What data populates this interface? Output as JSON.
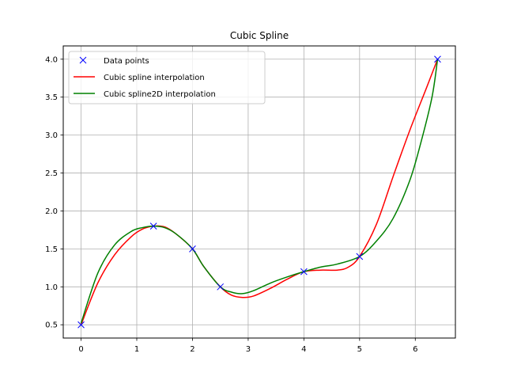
{
  "chart_data": {
    "type": "line",
    "title": "Cubic Spline",
    "xlabel": "",
    "ylabel": "",
    "xlim": [
      -0.32,
      6.72
    ],
    "ylim": [
      0.325,
      4.175
    ],
    "xticks": [
      0,
      1,
      2,
      3,
      4,
      5,
      6
    ],
    "xtick_labels": [
      "0",
      "1",
      "2",
      "3",
      "4",
      "5",
      "6"
    ],
    "yticks": [
      0.5,
      1.0,
      1.5,
      2.0,
      2.5,
      3.0,
      3.5,
      4.0
    ],
    "ytick_labels": [
      "0.5",
      "1.0",
      "1.5",
      "2.0",
      "2.5",
      "3.0",
      "3.5",
      "4.0"
    ],
    "grid": true,
    "legend_position": "upper-left",
    "series": [
      {
        "name": "Data points",
        "style": "markers",
        "marker": "x",
        "color": "#0000ff",
        "x": [
          0,
          1.3,
          2.0,
          2.5,
          4.0,
          5.0,
          6.4
        ],
        "y": [
          0.5,
          1.8,
          1.5,
          1.0,
          1.2,
          1.4,
          4.0
        ]
      },
      {
        "name": "Cubic spline interpolation",
        "style": "line",
        "color": "#ff0000",
        "x": [
          0,
          0.3,
          0.6,
          0.9,
          1.1,
          1.3,
          1.5,
          1.7,
          2.0,
          2.2,
          2.5,
          2.7,
          2.9,
          3.1,
          3.4,
          3.7,
          4.0,
          4.3,
          4.6,
          4.8,
          5.0,
          5.3,
          5.6,
          5.9,
          6.2,
          6.4
        ],
        "y": [
          0.5,
          1.05,
          1.42,
          1.66,
          1.76,
          1.8,
          1.79,
          1.7,
          1.5,
          1.27,
          1.0,
          0.89,
          0.86,
          0.88,
          0.98,
          1.1,
          1.2,
          1.22,
          1.22,
          1.26,
          1.4,
          1.82,
          2.45,
          3.06,
          3.62,
          4.0
        ]
      },
      {
        "name": "Cubic spline2D interpolation",
        "style": "line",
        "color": "#008000",
        "x": [
          0,
          0.3,
          0.6,
          0.9,
          1.1,
          1.3,
          1.5,
          1.7,
          2.0,
          2.2,
          2.5,
          2.7,
          2.9,
          3.1,
          3.4,
          3.7,
          4.0,
          4.3,
          4.6,
          5.0,
          5.3,
          5.6,
          5.9,
          6.1,
          6.3,
          6.4
        ],
        "y": [
          0.52,
          1.18,
          1.55,
          1.73,
          1.78,
          1.8,
          1.78,
          1.7,
          1.5,
          1.27,
          1.0,
          0.93,
          0.91,
          0.95,
          1.05,
          1.13,
          1.2,
          1.26,
          1.3,
          1.4,
          1.6,
          1.9,
          2.4,
          2.9,
          3.5,
          4.0
        ]
      }
    ]
  }
}
